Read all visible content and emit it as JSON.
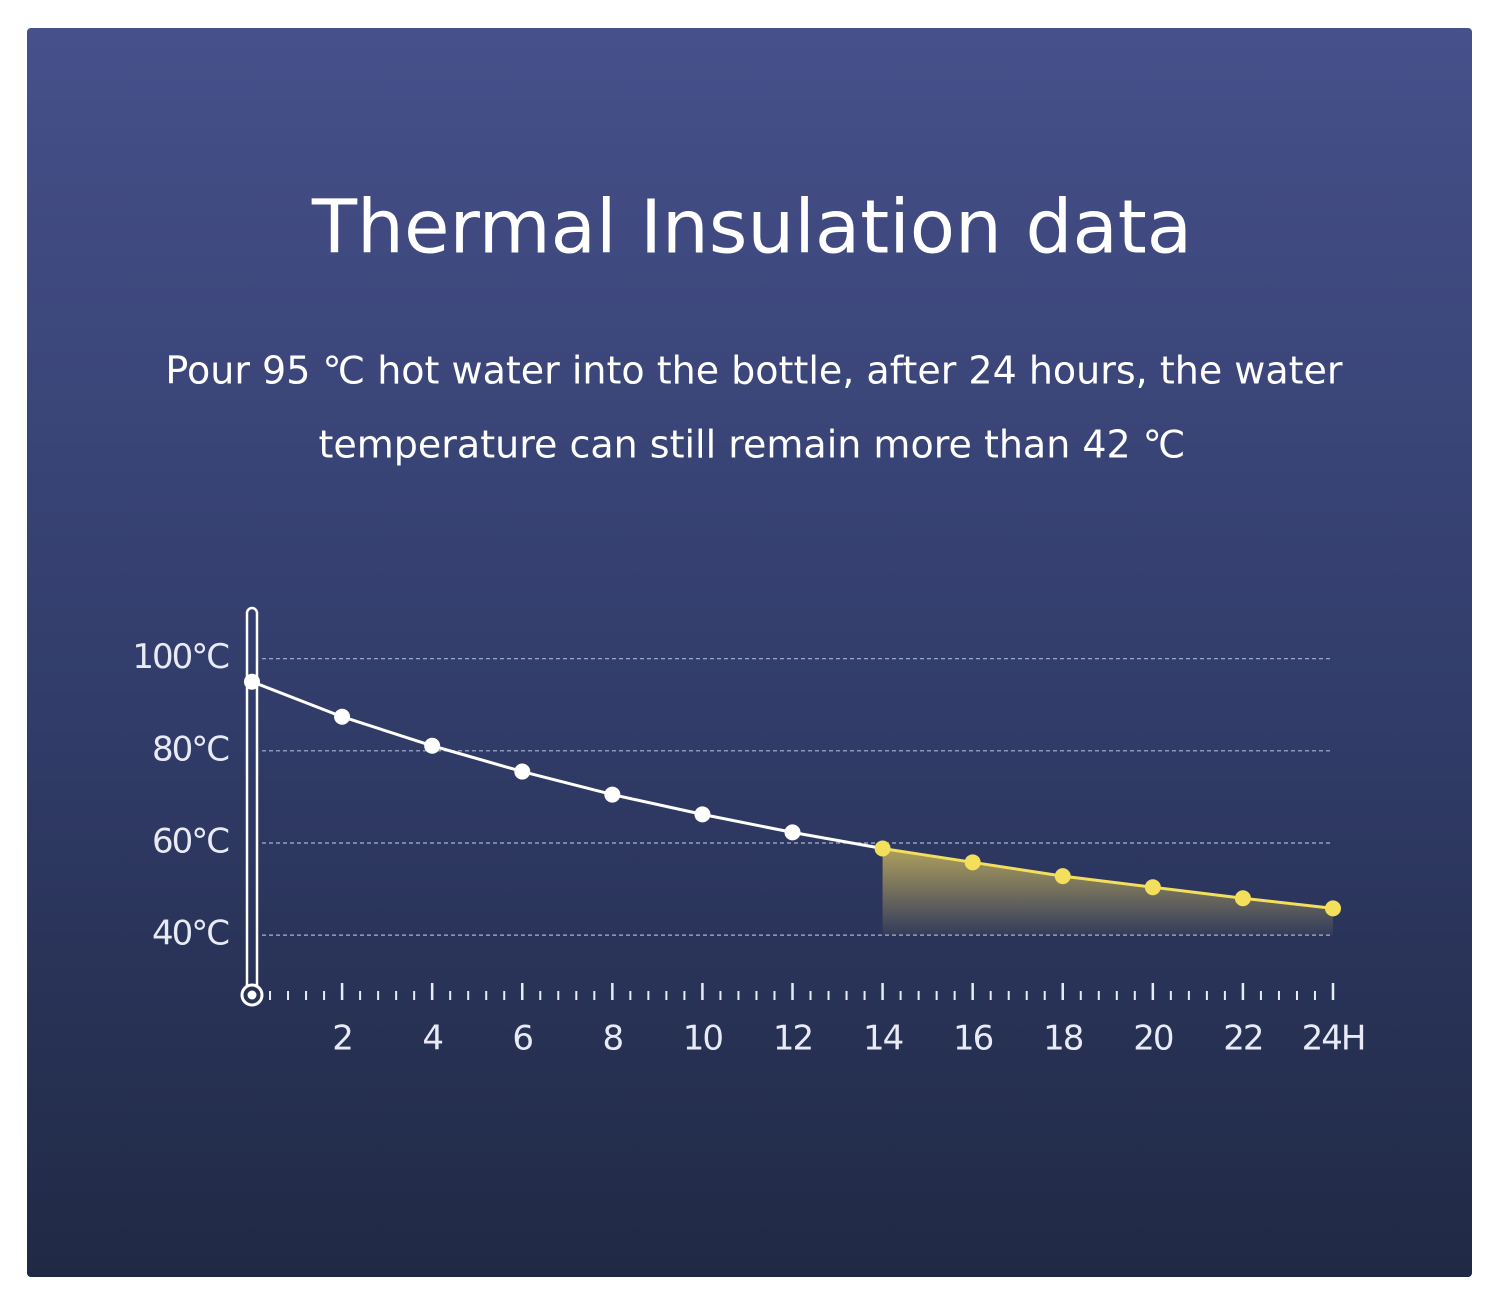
{
  "chart_data": {
    "type": "line",
    "title": "Thermal Insulation data",
    "subtitle": [
      "Pour 95 ℃ hot water into the bottle, after 24 hours, the water",
      "temperature can still remain more than 42 ℃"
    ],
    "x": [
      0,
      2,
      4,
      6,
      8,
      10,
      12,
      14,
      16,
      18,
      20,
      22,
      24
    ],
    "values": [
      95.0,
      87.4,
      81.1,
      75.5,
      70.5,
      66.2,
      62.3,
      58.8,
      55.8,
      52.8,
      50.4,
      48.0,
      45.8
    ],
    "color": "#ffffff",
    "highlight": {
      "from": 14,
      "color": "#f3df5c"
    },
    "xlim": [
      0,
      24
    ],
    "xticks": [
      2,
      4,
      6,
      8,
      10,
      12,
      14,
      16,
      18,
      20,
      {
        "value": 22,
        "label": "22"
      },
      {
        "value": 24,
        "label": "24H"
      }
    ],
    "ylim": [
      27,
      111
    ],
    "yticks": [
      {
        "value": 40,
        "label": "40°C"
      },
      {
        "value": 60,
        "label": "60°C"
      },
      {
        "value": 80,
        "label": "80°C"
      },
      {
        "value": 100,
        "label": "100°C"
      }
    ],
    "grid": true
  }
}
